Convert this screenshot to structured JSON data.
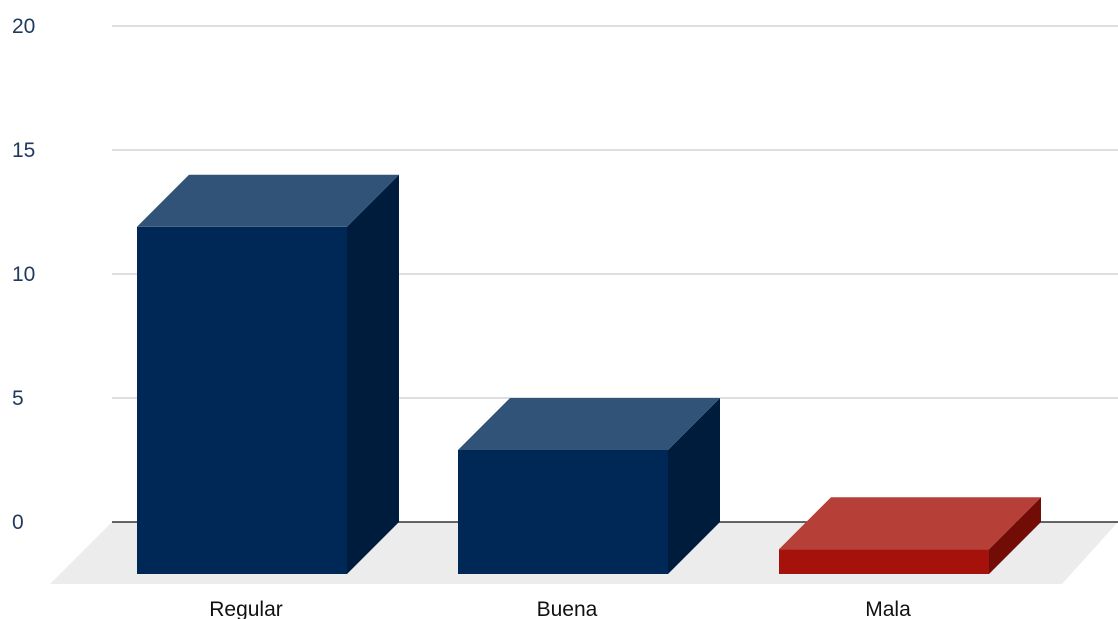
{
  "chart_data": {
    "type": "bar",
    "categories": [
      "Regular",
      "Buena",
      "Mala"
    ],
    "values": [
      14,
      5,
      1
    ],
    "ylim": [
      0,
      20
    ],
    "yticks": [
      0,
      5,
      10,
      15,
      20
    ],
    "grid": true,
    "legend": "none",
    "style": "3d",
    "colors": {
      "front": [
        "#002856",
        "#002856",
        "#a4120b"
      ],
      "top": [
        "#315378",
        "#315378",
        "#b64038"
      ],
      "side": [
        "#001c3c",
        "#001c3c",
        "#720c07"
      ],
      "floor": "#ececec",
      "gridline": "#cccccc",
      "axis": "#333333"
    }
  }
}
